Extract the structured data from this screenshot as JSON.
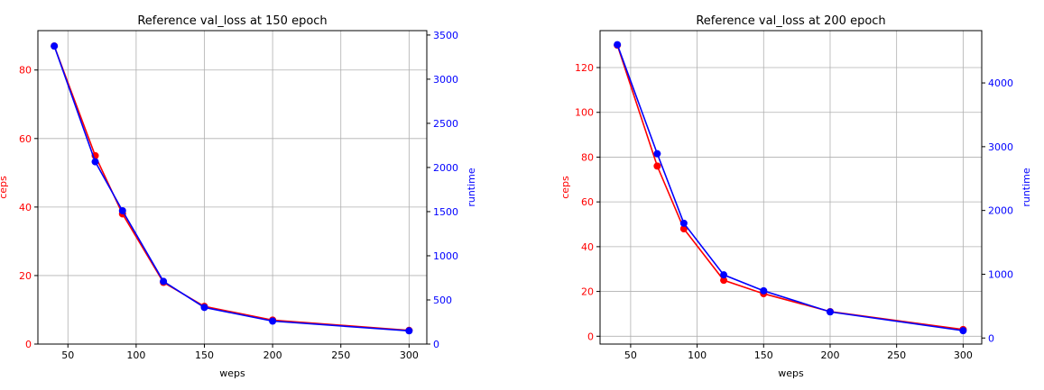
{
  "chart_data": [
    {
      "type": "line",
      "title": "Reference val_loss at 150 epoch",
      "xlabel": "weps",
      "ylabel_left": "ceps",
      "ylabel_right": "runtime",
      "xlim": [
        28,
        313
      ],
      "ylim_left": [
        0,
        91.5
      ],
      "ylim_right": [
        0,
        3550
      ],
      "xticks": [
        50,
        100,
        150,
        200,
        250,
        300
      ],
      "yticks_left": [
        0,
        20,
        40,
        60,
        80
      ],
      "yticks_right": [
        0,
        500,
        1000,
        1500,
        2000,
        2500,
        3000,
        3500
      ],
      "grid": true,
      "x": [
        40,
        70,
        90,
        120,
        150,
        200,
        300
      ],
      "series": [
        {
          "axis": "left",
          "color": "#ff0000",
          "values": [
            87,
            55,
            38,
            18,
            11,
            7,
            4
          ]
        },
        {
          "axis": "right",
          "color": "#0000ff",
          "values": [
            3375,
            2065,
            1510,
            710,
            415,
            260,
            150
          ]
        }
      ]
    },
    {
      "type": "line",
      "title": "Reference val_loss at 200 epoch",
      "xlabel": "weps",
      "ylabel_left": "ceps",
      "ylabel_right": "runtime",
      "xlim": [
        27,
        314
      ],
      "ylim_left": [
        -3.5,
        136.5
      ],
      "ylim_right": [
        -95,
        4820
      ],
      "xticks": [
        50,
        100,
        150,
        200,
        250,
        300
      ],
      "yticks_left": [
        0,
        20,
        40,
        60,
        80,
        100,
        120
      ],
      "yticks_right": [
        0,
        1000,
        2000,
        3000,
        4000
      ],
      "grid": true,
      "x": [
        40,
        70,
        90,
        120,
        150,
        200,
        300
      ],
      "series": [
        {
          "axis": "left",
          "color": "#ff0000",
          "values": [
            130,
            76,
            48,
            25,
            19,
            11,
            3
          ]
        },
        {
          "axis": "right",
          "color": "#0000ff",
          "values": [
            4600,
            2890,
            1800,
            990,
            740,
            410,
            115
          ]
        }
      ]
    }
  ]
}
